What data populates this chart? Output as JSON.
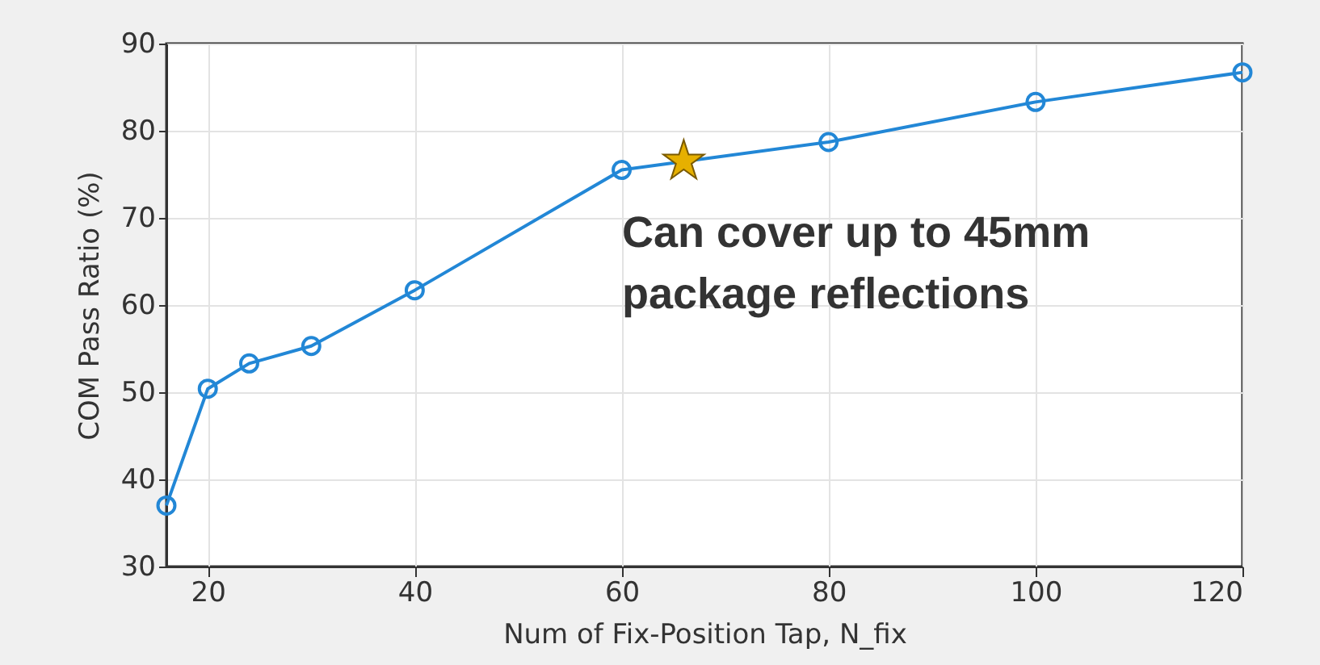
{
  "chart_data": {
    "type": "line",
    "xlabel": "Num of Fix-Position Tap, N_fix",
    "ylabel": "COM Pass Ratio (%)",
    "series": [
      {
        "color": "#2287d6",
        "marker": "circle",
        "x": [
          16,
          20,
          24,
          30,
          40,
          60,
          80,
          100,
          120
        ],
        "values": [
          37,
          50.4,
          53.3,
          55.3,
          61.7,
          75.5,
          78.7,
          83.3,
          86.7
        ]
      },
      {
        "type": "scatter",
        "color": "#e6b000",
        "marker": "star",
        "x": [
          66
        ],
        "values": [
          76.5
        ]
      }
    ],
    "xlim": [
      16,
      120
    ],
    "xticks": [
      20,
      40,
      60,
      80,
      100,
      120
    ],
    "ylim": [
      30,
      90
    ],
    "yticks": [
      30,
      40,
      50,
      60,
      70,
      80,
      90
    ],
    "grid": true,
    "line_style": "solid",
    "annotations": [
      "Can cover up to 45mm\npackage reflections"
    ]
  }
}
